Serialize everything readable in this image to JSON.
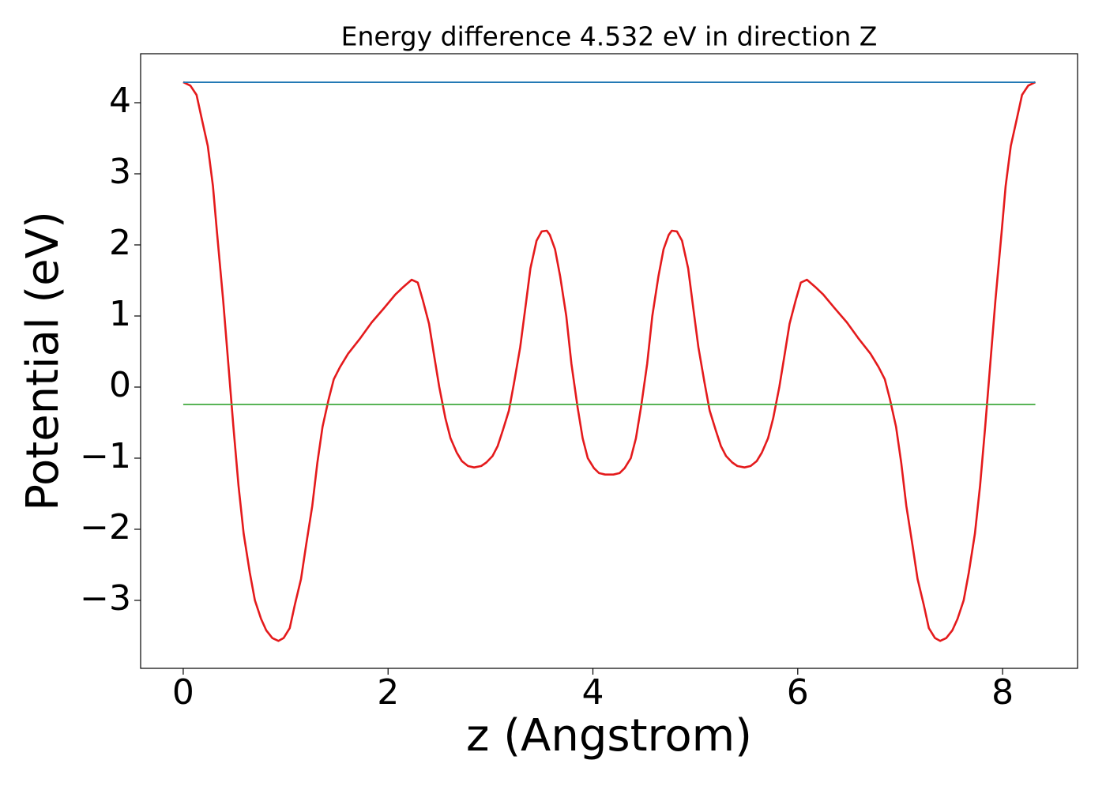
{
  "chart_data": {
    "type": "line",
    "title": "Energy difference 4.532 eV in direction Z",
    "x_label": "z (Angstrom)",
    "y_label": "Potential (eV)",
    "xlim": [
      -0.416,
      8.732
    ],
    "ylim": [
      -3.956,
      4.689
    ],
    "xticks": [
      0,
      2,
      4,
      6,
      8
    ],
    "yticks": [
      {
        "value": -3,
        "label": "−3"
      },
      {
        "value": -2,
        "label": "−2"
      },
      {
        "value": -1,
        "label": "−1"
      },
      0,
      1,
      2,
      3,
      4
    ],
    "grid": false,
    "series": [
      {
        "color": "#e41a1c",
        "x": [
          0,
          0.07,
          0.13,
          0.18,
          0.24,
          0.29,
          0.33,
          0.39,
          0.44,
          0.49,
          0.54,
          0.59,
          0.65,
          0.7,
          0.76,
          0.81,
          0.87,
          0.93,
          0.98,
          1.04,
          1.09,
          1.15,
          1.2,
          1.26,
          1.31,
          1.36,
          1.42,
          1.47,
          1.53,
          1.61,
          1.73,
          1.84,
          1.96,
          2.07,
          2.15,
          2.23,
          2.29,
          2.34,
          2.4,
          2.45,
          2.5,
          2.56,
          2.61,
          2.67,
          2.72,
          2.78,
          2.84,
          2.91,
          2.96,
          3.02,
          3.07,
          3.12,
          3.18,
          3.23,
          3.29,
          3.34,
          3.39,
          3.45,
          3.5,
          3.55,
          3.58,
          3.63,
          3.68,
          3.74,
          3.79,
          3.85,
          3.9,
          3.95,
          4.01,
          4.06,
          4.12,
          4.16,
          4.2,
          4.26,
          4.31,
          4.37,
          4.42,
          4.47,
          4.53,
          4.58,
          4.64,
          4.69,
          4.74,
          4.77,
          4.82,
          4.87,
          4.93,
          4.98,
          5.03,
          5.09,
          5.14,
          5.2,
          5.25,
          5.3,
          5.36,
          5.41,
          5.48,
          5.54,
          5.6,
          5.65,
          5.71,
          5.76,
          5.82,
          5.87,
          5.92,
          5.98,
          6.03,
          6.09,
          6.17,
          6.25,
          6.36,
          6.48,
          6.59,
          6.71,
          6.79,
          6.85,
          6.9,
          6.96,
          7.01,
          7.06,
          7.12,
          7.17,
          7.23,
          7.28,
          7.34,
          7.39,
          7.45,
          7.51,
          7.56,
          7.62,
          7.67,
          7.73,
          7.78,
          7.83,
          7.88,
          7.93,
          7.99,
          8.03,
          8.08,
          8.14,
          8.19,
          8.25,
          8.32
        ],
        "values": [
          4.29,
          4.24,
          4.11,
          3.78,
          3.39,
          2.83,
          2.17,
          1.22,
          0.33,
          -0.56,
          -1.39,
          -2.06,
          -2.61,
          -3.0,
          -3.26,
          -3.42,
          -3.53,
          -3.57,
          -3.53,
          -3.39,
          -3.06,
          -2.7,
          -2.22,
          -1.67,
          -1.06,
          -0.56,
          -0.17,
          0.11,
          0.28,
          0.47,
          0.69,
          0.91,
          1.11,
          1.3,
          1.41,
          1.51,
          1.47,
          1.22,
          0.89,
          0.44,
          0.0,
          -0.44,
          -0.72,
          -0.92,
          -1.04,
          -1.11,
          -1.13,
          -1.11,
          -1.06,
          -0.97,
          -0.83,
          -0.61,
          -0.33,
          0.06,
          0.56,
          1.11,
          1.67,
          2.06,
          2.19,
          2.2,
          2.14,
          1.94,
          1.56,
          1.0,
          0.33,
          -0.28,
          -0.72,
          -1.0,
          -1.14,
          -1.21,
          -1.23,
          -1.23,
          -1.23,
          -1.21,
          -1.14,
          -1.0,
          -0.72,
          -0.28,
          0.33,
          1.0,
          1.56,
          1.94,
          2.14,
          2.2,
          2.19,
          2.06,
          1.67,
          1.11,
          0.56,
          0.06,
          -0.33,
          -0.61,
          -0.83,
          -0.97,
          -1.06,
          -1.11,
          -1.13,
          -1.11,
          -1.04,
          -0.92,
          -0.72,
          -0.44,
          0.0,
          0.44,
          0.89,
          1.22,
          1.47,
          1.51,
          1.41,
          1.3,
          1.11,
          0.91,
          0.69,
          0.47,
          0.28,
          0.11,
          -0.17,
          -0.56,
          -1.06,
          -1.67,
          -2.22,
          -2.7,
          -3.06,
          -3.39,
          -3.53,
          -3.57,
          -3.53,
          -3.42,
          -3.26,
          -3.0,
          -2.61,
          -2.06,
          -1.39,
          -0.56,
          0.33,
          1.22,
          2.17,
          2.83,
          3.39,
          3.78,
          4.11,
          4.24,
          4.29
        ]
      },
      {
        "color": "#1f77b4",
        "x": [
          0,
          8.32
        ],
        "values": [
          4.288,
          4.288
        ]
      },
      {
        "color": "#4daf4a",
        "x": [
          0,
          8.32
        ],
        "values": [
          -0.244,
          -0.244
        ]
      }
    ]
  }
}
